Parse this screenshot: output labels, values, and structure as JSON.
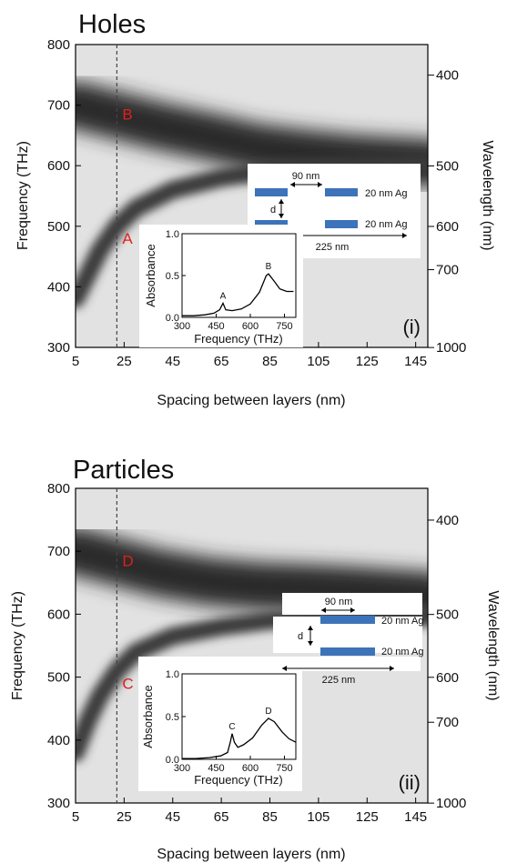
{
  "chart_data": [
    {
      "type": "heatmap",
      "title": "Holes",
      "xlabel": "Spacing between layers (nm)",
      "ylabel": "Frequency (THz)",
      "y2label": "Wavelength (nm)",
      "xlim": [
        5,
        150
      ],
      "ylim": [
        300,
        800
      ],
      "xticks": [
        "5",
        "25",
        "45",
        "65",
        "85",
        "105",
        "125",
        "145"
      ],
      "yticks": [
        "300",
        "400",
        "500",
        "600",
        "700",
        "800"
      ],
      "y2ticks": [
        {
          "label": "400",
          "freq": 749.5
        },
        {
          "label": "500",
          "freq": 599.6
        },
        {
          "label": "600",
          "freq": 499.7
        },
        {
          "label": "700",
          "freq": 428.3
        },
        {
          "label": "1000",
          "freq": 299.8
        }
      ],
      "dashed_x": 22,
      "panel_label": "(i)",
      "upper_band": [
        [
          5,
          700
        ],
        [
          20,
          685
        ],
        [
          40,
          665
        ],
        [
          60,
          648
        ],
        [
          80,
          630
        ],
        [
          100,
          620
        ],
        [
          120,
          612
        ],
        [
          150,
          605
        ]
      ],
      "lower_band": [
        [
          5,
          380
        ],
        [
          10,
          420
        ],
        [
          15,
          460
        ],
        [
          22,
          500
        ],
        [
          30,
          530
        ],
        [
          45,
          560
        ],
        [
          65,
          580
        ],
        [
          85,
          592
        ],
        [
          105,
          598
        ],
        [
          150,
          602
        ]
      ],
      "points": [
        {
          "label": "A",
          "x": 22,
          "y": 480
        },
        {
          "label": "B",
          "x": 22,
          "y": 685
        }
      ],
      "schematic": {
        "spacing_label": "90 nm",
        "period_label": "225 nm",
        "gap_label": "d",
        "top_layer_label": "20 nm Ag",
        "bottom_layer_label": "20 nm Ag"
      },
      "inset": {
        "xlabel": "Frequency (THz)",
        "ylabel": "Absorbance",
        "xticks": [
          "300",
          "450",
          "600",
          "750"
        ],
        "yticks": [
          "0.0",
          "0.5",
          "1.0"
        ],
        "xlim": [
          300,
          800
        ],
        "ylim": [
          0,
          1
        ],
        "peaks": [
          {
            "label": "A",
            "x": 480,
            "y": 0.17
          },
          {
            "label": "B",
            "x": 680,
            "y": 0.52
          }
        ],
        "curve": [
          [
            300,
            0.02
          ],
          [
            350,
            0.02
          ],
          [
            400,
            0.03
          ],
          [
            440,
            0.05
          ],
          [
            465,
            0.09
          ],
          [
            480,
            0.17
          ],
          [
            492,
            0.09
          ],
          [
            520,
            0.08
          ],
          [
            560,
            0.1
          ],
          [
            600,
            0.16
          ],
          [
            640,
            0.3
          ],
          [
            670,
            0.5
          ],
          [
            680,
            0.52
          ],
          [
            700,
            0.45
          ],
          [
            730,
            0.34
          ],
          [
            760,
            0.31
          ],
          [
            790,
            0.31
          ]
        ]
      }
    },
    {
      "type": "heatmap",
      "title": "Particles",
      "xlabel": "Spacing between layers (nm)",
      "ylabel": "Frequency (THz)",
      "y2label": "Wavelength (nm)",
      "xlim": [
        5,
        150
      ],
      "ylim": [
        300,
        800
      ],
      "xticks": [
        "5",
        "25",
        "45",
        "65",
        "85",
        "105",
        "125",
        "145"
      ],
      "yticks": [
        "300",
        "400",
        "500",
        "600",
        "700",
        "800"
      ],
      "y2ticks": [
        {
          "label": "400",
          "freq": 749.5
        },
        {
          "label": "500",
          "freq": 599.6
        },
        {
          "label": "600",
          "freq": 499.7
        },
        {
          "label": "700",
          "freq": 428.3
        },
        {
          "label": "1000",
          "freq": 299.8
        }
      ],
      "dashed_x": 22,
      "panel_label": "(ii)",
      "upper_band": [
        [
          5,
          700
        ],
        [
          20,
          685
        ],
        [
          40,
          665
        ],
        [
          60,
          652
        ],
        [
          80,
          645
        ],
        [
          100,
          642
        ],
        [
          120,
          638
        ],
        [
          150,
          630
        ]
      ],
      "lower_band": [
        [
          5,
          380
        ],
        [
          10,
          430
        ],
        [
          15,
          470
        ],
        [
          22,
          510
        ],
        [
          30,
          540
        ],
        [
          45,
          565
        ],
        [
          65,
          580
        ],
        [
          85,
          590
        ],
        [
          105,
          592
        ],
        [
          150,
          595
        ]
      ],
      "points": [
        {
          "label": "C",
          "x": 22,
          "y": 490
        },
        {
          "label": "D",
          "x": 22,
          "y": 685
        }
      ],
      "schematic": {
        "spacing_label": "90 nm",
        "period_label": "225 nm",
        "gap_label": "d",
        "top_layer_label": "20 nm Ag",
        "bottom_layer_label": "20 nm Ag"
      },
      "inset": {
        "xlabel": "Frequency (THz)",
        "ylabel": "Absorbance",
        "xticks": [
          "300",
          "450",
          "600",
          "750"
        ],
        "yticks": [
          "0.0",
          "0.5",
          "1.0"
        ],
        "xlim": [
          300,
          800
        ],
        "ylim": [
          0,
          1
        ],
        "peaks": [
          {
            "label": "C",
            "x": 520,
            "y": 0.3
          },
          {
            "label": "D",
            "x": 680,
            "y": 0.48
          }
        ],
        "curve": [
          [
            300,
            0.01
          ],
          [
            360,
            0.01
          ],
          [
            420,
            0.02
          ],
          [
            470,
            0.04
          ],
          [
            500,
            0.08
          ],
          [
            512,
            0.2
          ],
          [
            520,
            0.3
          ],
          [
            530,
            0.2
          ],
          [
            545,
            0.14
          ],
          [
            570,
            0.17
          ],
          [
            610,
            0.25
          ],
          [
            650,
            0.4
          ],
          [
            680,
            0.48
          ],
          [
            705,
            0.44
          ],
          [
            740,
            0.32
          ],
          [
            770,
            0.24
          ],
          [
            800,
            0.2
          ]
        ]
      }
    }
  ]
}
